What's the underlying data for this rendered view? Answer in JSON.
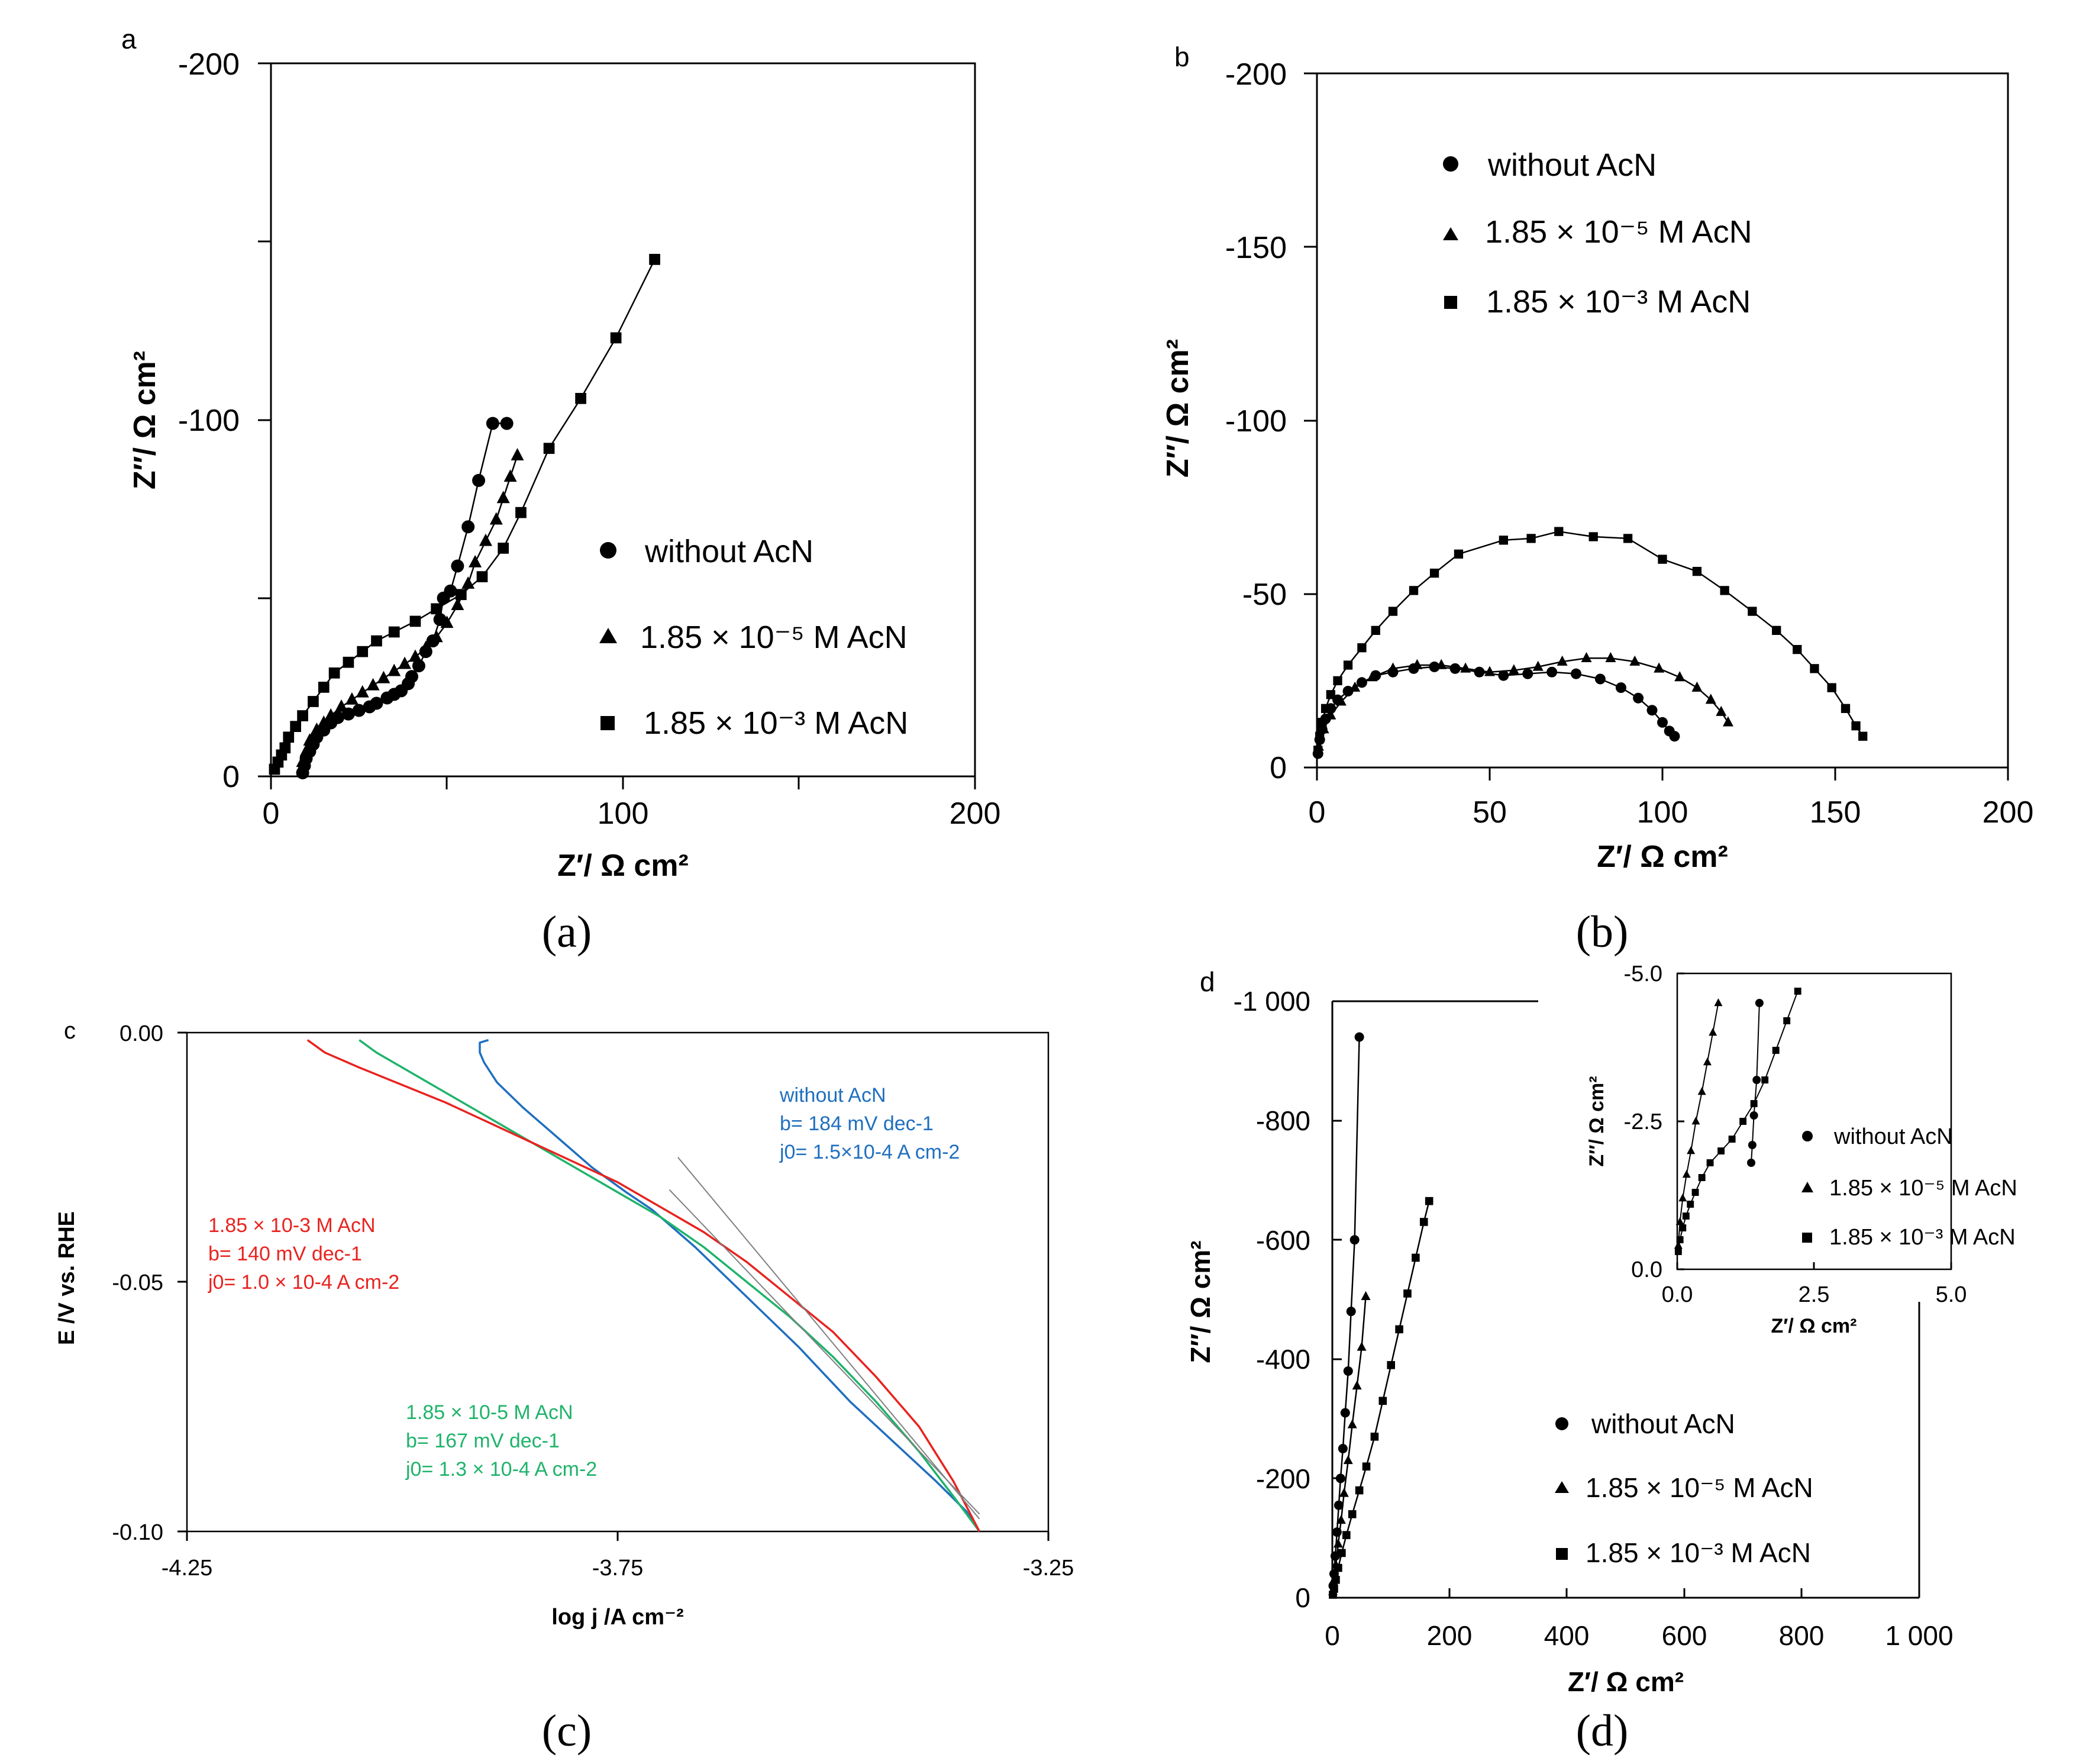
{
  "captions": [
    "(a)",
    "(b)",
    "(c)",
    "(d)"
  ],
  "colors": {
    "without_c": "#1f6fbf",
    "low_c": "#1fb36b",
    "high_c": "#e8231f",
    "fit": "#808080",
    "ink": "#000000"
  },
  "chart_data": [
    {
      "panel": "a",
      "panel_letter": "a",
      "type": "scatter",
      "xlabel": "Z′/ Ω cm²",
      "ylabel": "Z″/ Ω cm²",
      "xlim": [
        0,
        200
      ],
      "ylim": [
        0,
        -200
      ],
      "xticks": [
        "0",
        "100",
        "200"
      ],
      "yticks": [
        "0",
        "-100",
        "-200"
      ],
      "legend_position": "lower-right",
      "series": [
        {
          "name": "without AcN",
          "marker": "circle",
          "x": [
            9,
            9.5,
            10,
            11,
            12,
            13,
            15,
            17,
            19,
            22,
            25,
            28,
            30,
            33,
            35,
            37,
            39,
            40,
            42,
            44,
            46,
            48,
            49,
            51,
            53,
            56,
            59,
            63,
            67
          ],
          "y": [
            -1,
            -3,
            -5,
            -7,
            -9,
            -11,
            -13,
            -15,
            -16.5,
            -17.5,
            -18.5,
            -19.5,
            -20.5,
            -22,
            -23,
            -24,
            -26,
            -28,
            -31,
            -35,
            -38,
            -44,
            -50,
            -52,
            -59,
            -70,
            -83,
            -99,
            -99
          ]
        },
        {
          "name": "1.85 × 10⁻⁵ M AcN",
          "marker": "triangle",
          "x": [
            9,
            10,
            11,
            13,
            15,
            17,
            20,
            23,
            26,
            29,
            32,
            35,
            38,
            41,
            44,
            47,
            50,
            53,
            56,
            58,
            61,
            64,
            66,
            68,
            70
          ],
          "y": [
            -4,
            -7,
            -10,
            -13,
            -15,
            -17,
            -19.5,
            -21.5,
            -23.5,
            -25.5,
            -27.5,
            -29.5,
            -31.5,
            -33.5,
            -36,
            -39,
            -43,
            -48,
            -54,
            -60,
            -66,
            -72,
            -78,
            -84,
            -90
          ]
        },
        {
          "name": "1.85 × 10⁻³ M AcN",
          "marker": "square",
          "x": [
            1,
            2,
            3,
            4,
            5,
            7,
            9,
            12,
            15,
            18,
            22,
            26,
            30,
            35,
            41,
            47,
            54,
            60,
            66,
            71,
            79,
            88,
            98,
            109
          ],
          "y": [
            -2,
            -4,
            -6,
            -8,
            -11,
            -14,
            -17,
            -21,
            -25,
            -29,
            -32,
            -35,
            -38,
            -40.5,
            -43.5,
            -47,
            -51,
            -56,
            -64,
            -74,
            -92,
            -106,
            -123,
            -145
          ]
        }
      ]
    },
    {
      "panel": "b",
      "panel_letter": "b",
      "type": "scatter",
      "xlabel": "Z′/ Ω cm²",
      "ylabel": "Z″/ Ω cm²",
      "xlim": [
        0,
        200
      ],
      "ylim": [
        0,
        -200
      ],
      "xticks": [
        "0",
        "50",
        "100",
        "150",
        "200"
      ],
      "yticks": [
        "0",
        "-50",
        "-100",
        "-150",
        "-200"
      ],
      "legend_position": "top-left",
      "series": [
        {
          "name": "without AcN",
          "marker": "circle",
          "x": [
            0.3,
            0.8,
            1.5,
            2.5,
            4,
            6,
            9,
            13,
            17,
            22,
            28,
            34,
            40,
            47,
            54,
            61,
            68,
            75,
            82,
            88,
            93,
            97,
            100,
            102,
            103.5
          ],
          "y": [
            -4,
            -8,
            -11,
            -14,
            -17,
            -19.5,
            -22,
            -24.5,
            -26.5,
            -27.5,
            -28.5,
            -29,
            -28.5,
            -27.5,
            -26.5,
            -27,
            -27.5,
            -27,
            -25.5,
            -23,
            -20,
            -16.5,
            -13,
            -10.5,
            -9
          ]
        },
        {
          "name": "1.85 × 10⁻⁵ M AcN",
          "marker": "triangle",
          "x": [
            0.5,
            2,
            4,
            7,
            11,
            16,
            22,
            29,
            36,
            43,
            50,
            57,
            64,
            71,
            78,
            85,
            92,
            99,
            105,
            110,
            114,
            117,
            119
          ],
          "y": [
            -6,
            -11,
            -15,
            -19,
            -23,
            -26,
            -28.5,
            -29.5,
            -29.5,
            -28.5,
            -27.5,
            -28,
            -29,
            -30.5,
            -31.5,
            -31.5,
            -30.5,
            -28.5,
            -26,
            -23,
            -19.5,
            -16,
            -13
          ]
        },
        {
          "name": "1.85 × 10⁻³ M AcN",
          "marker": "square",
          "x": [
            0.3,
            0.8,
            1.5,
            2.5,
            4,
            6,
            9,
            13,
            17,
            22,
            28,
            34,
            41,
            54,
            62,
            70,
            80,
            90,
            100,
            110,
            118,
            126,
            133,
            139,
            144,
            149,
            153,
            156,
            158
          ],
          "y": [
            -5,
            -9,
            -13,
            -17,
            -21,
            -25,
            -29.5,
            -34.5,
            -39.5,
            -45,
            -51,
            -56,
            -61.5,
            -65.5,
            -66,
            -68,
            -66.5,
            -66,
            -60,
            -56.5,
            -51,
            -45,
            -39.5,
            -34,
            -28.5,
            -23,
            -17,
            -12,
            -9
          ]
        }
      ]
    },
    {
      "panel": "c",
      "panel_letter": "c",
      "type": "line",
      "xlabel": "log j /A cm⁻²",
      "ylabel": "E /V vs. RHE",
      "xlim": [
        -4.25,
        -3.25
      ],
      "ylim": [
        -0.1,
        0.0
      ],
      "xticks": [
        "-4.25",
        "-3.75",
        "-3.25"
      ],
      "yticks": [
        "0.00",
        "-0.05",
        "-0.10"
      ],
      "series": [
        {
          "name": "without AcN",
          "color": "#1f6fbf",
          "x": [
            -3.9,
            -3.91,
            -3.91,
            -3.905,
            -3.89,
            -3.86,
            -3.82,
            -3.78,
            -3.74,
            -3.71,
            -3.69,
            -3.66,
            -3.6,
            -3.54,
            -3.48,
            -3.43,
            -3.38,
            -3.345,
            -3.33
          ],
          "y": [
            -0.0015,
            -0.002,
            -0.004,
            -0.006,
            -0.01,
            -0.015,
            -0.021,
            -0.027,
            -0.032,
            -0.0355,
            -0.0385,
            -0.043,
            -0.053,
            -0.063,
            -0.074,
            -0.082,
            -0.09,
            -0.096,
            -0.1
          ]
        },
        {
          "name": "1.85 × 10⁻⁵ M AcN",
          "color": "#1fb36b",
          "x": [
            -4.05,
            -4.03,
            -3.98,
            -3.92,
            -3.86,
            -3.8,
            -3.75,
            -3.7,
            -3.65,
            -3.6,
            -3.55,
            -3.5,
            -3.45,
            -3.4,
            -3.36,
            -3.33
          ],
          "y": [
            -0.0015,
            -0.004,
            -0.009,
            -0.015,
            -0.021,
            -0.027,
            -0.032,
            -0.037,
            -0.043,
            -0.05,
            -0.057,
            -0.065,
            -0.074,
            -0.084,
            -0.093,
            -0.1
          ]
        },
        {
          "name": "1.85 × 10⁻³ M AcN",
          "color": "#e8231f",
          "x": [
            -4.11,
            -4.09,
            -4.05,
            -4.0,
            -3.95,
            -3.9,
            -3.85,
            -3.8,
            -3.75,
            -3.7,
            -3.65,
            -3.6,
            -3.55,
            -3.5,
            -3.45,
            -3.4,
            -3.36,
            -3.33
          ],
          "y": [
            -0.0015,
            -0.004,
            -0.007,
            -0.0105,
            -0.014,
            -0.018,
            -0.022,
            -0.026,
            -0.03,
            -0.035,
            -0.04,
            -0.046,
            -0.053,
            -0.06,
            -0.069,
            -0.079,
            -0.09,
            -0.1
          ]
        },
        {
          "name": "fit",
          "color": "#808080",
          "x": [
            -3.68,
            -3.33
          ],
          "y": [
            -0.025,
            -0.0975
          ]
        },
        {
          "name": "fit",
          "color": "#808080",
          "x": [
            -3.69,
            -3.33
          ],
          "y": [
            -0.0315,
            -0.0965
          ]
        }
      ],
      "annotations": [
        {
          "color": "#1f6fbf",
          "lines": [
            "without AcN",
            "b= 184 mV dec-1",
            "j0= 1.5×10-4 A cm-2"
          ]
        },
        {
          "color": "#e8231f",
          "lines": [
            "1.85 × 10-3 M AcN",
            "b= 140 mV dec-1",
            "j0= 1.0 × 10-4 A cm-2"
          ]
        },
        {
          "color": "#1fb36b",
          "lines": [
            "1.85 × 10-5 M AcN",
            "b= 167 mV dec-1",
            "j0= 1.3 × 10-4 A cm-2"
          ]
        }
      ]
    },
    {
      "panel": "d",
      "panel_letter": "d",
      "type": "scatter",
      "xlabel": "Z′/ Ω cm²",
      "ylabel": "Z″/ Ω cm²",
      "xlim": [
        0,
        1000
      ],
      "ylim": [
        0,
        -1000
      ],
      "xticks": [
        "0",
        "200",
        "400",
        "600",
        "800",
        "1 000"
      ],
      "yticks": [
        "0",
        "-200",
        "-400",
        "-600",
        "-800",
        "-1 000"
      ],
      "legend_position": "lower-right",
      "series": [
        {
          "name": "without AcN",
          "marker": "circle",
          "x": [
            1.5,
            3,
            5,
            8,
            11,
            14,
            18,
            22,
            27,
            32,
            38,
            46
          ],
          "y": [
            -20,
            -40,
            -70,
            -110,
            -155,
            -200,
            -250,
            -310,
            -380,
            -480,
            -600,
            -940
          ]
        },
        {
          "name": "1.85 × 10⁻⁵ M AcN",
          "marker": "triangle",
          "x": [
            1,
            3,
            6,
            10,
            15,
            20,
            27,
            34,
            42,
            50,
            57
          ],
          "y": [
            -10,
            -30,
            -55,
            -90,
            -130,
            -175,
            -230,
            -290,
            -355,
            -420,
            -505
          ]
        },
        {
          "name": "1.85 × 10⁻³ M AcN",
          "marker": "square",
          "x": [
            1,
            3,
            6,
            10,
            16,
            24,
            34,
            46,
            58,
            72,
            86,
            100,
            114,
            128,
            142,
            156,
            165
          ],
          "y": [
            -5,
            -15,
            -30,
            -50,
            -75,
            -105,
            -140,
            -180,
            -220,
            -270,
            -330,
            -390,
            -450,
            -510,
            -570,
            -630,
            -665
          ]
        }
      ],
      "inset": {
        "xlabel": "Z′/ Ω cm²",
        "ylabel": "Z″/ Ω cm²",
        "xlim": [
          0,
          5
        ],
        "ylim": [
          0,
          -5
        ],
        "xticks": [
          "0.0",
          "2.5",
          "5.0"
        ],
        "yticks": [
          "0.0",
          "-2.5",
          "-5.0"
        ],
        "series": [
          {
            "name": "without AcN",
            "marker": "circle",
            "x": [
              1.35,
              1.37,
              1.4,
              1.45,
              1.5
            ],
            "y": [
              -1.8,
              -2.1,
              -2.6,
              -3.2,
              -4.5
            ]
          },
          {
            "name": "1.85 × 10⁻⁵ M AcN",
            "marker": "triangle",
            "x": [
              0.02,
              0.05,
              0.1,
              0.17,
              0.25,
              0.34,
              0.45,
              0.55,
              0.65,
              0.75
            ],
            "y": [
              -0.4,
              -0.8,
              -1.2,
              -1.6,
              -2.0,
              -2.5,
              -3.0,
              -3.5,
              -4.0,
              -4.5
            ]
          },
          {
            "name": "1.85 × 10⁻³ M AcN",
            "marker": "square",
            "x": [
              0.02,
              0.05,
              0.1,
              0.16,
              0.24,
              0.33,
              0.45,
              0.6,
              0.8,
              1.0,
              1.2,
              1.4,
              1.6,
              1.8,
              2.0,
              2.2
            ],
            "y": [
              -0.3,
              -0.5,
              -0.7,
              -0.9,
              -1.1,
              -1.3,
              -1.55,
              -1.8,
              -2.0,
              -2.2,
              -2.5,
              -2.8,
              -3.2,
              -3.7,
              -4.2,
              -4.7
            ]
          }
        ]
      }
    }
  ]
}
